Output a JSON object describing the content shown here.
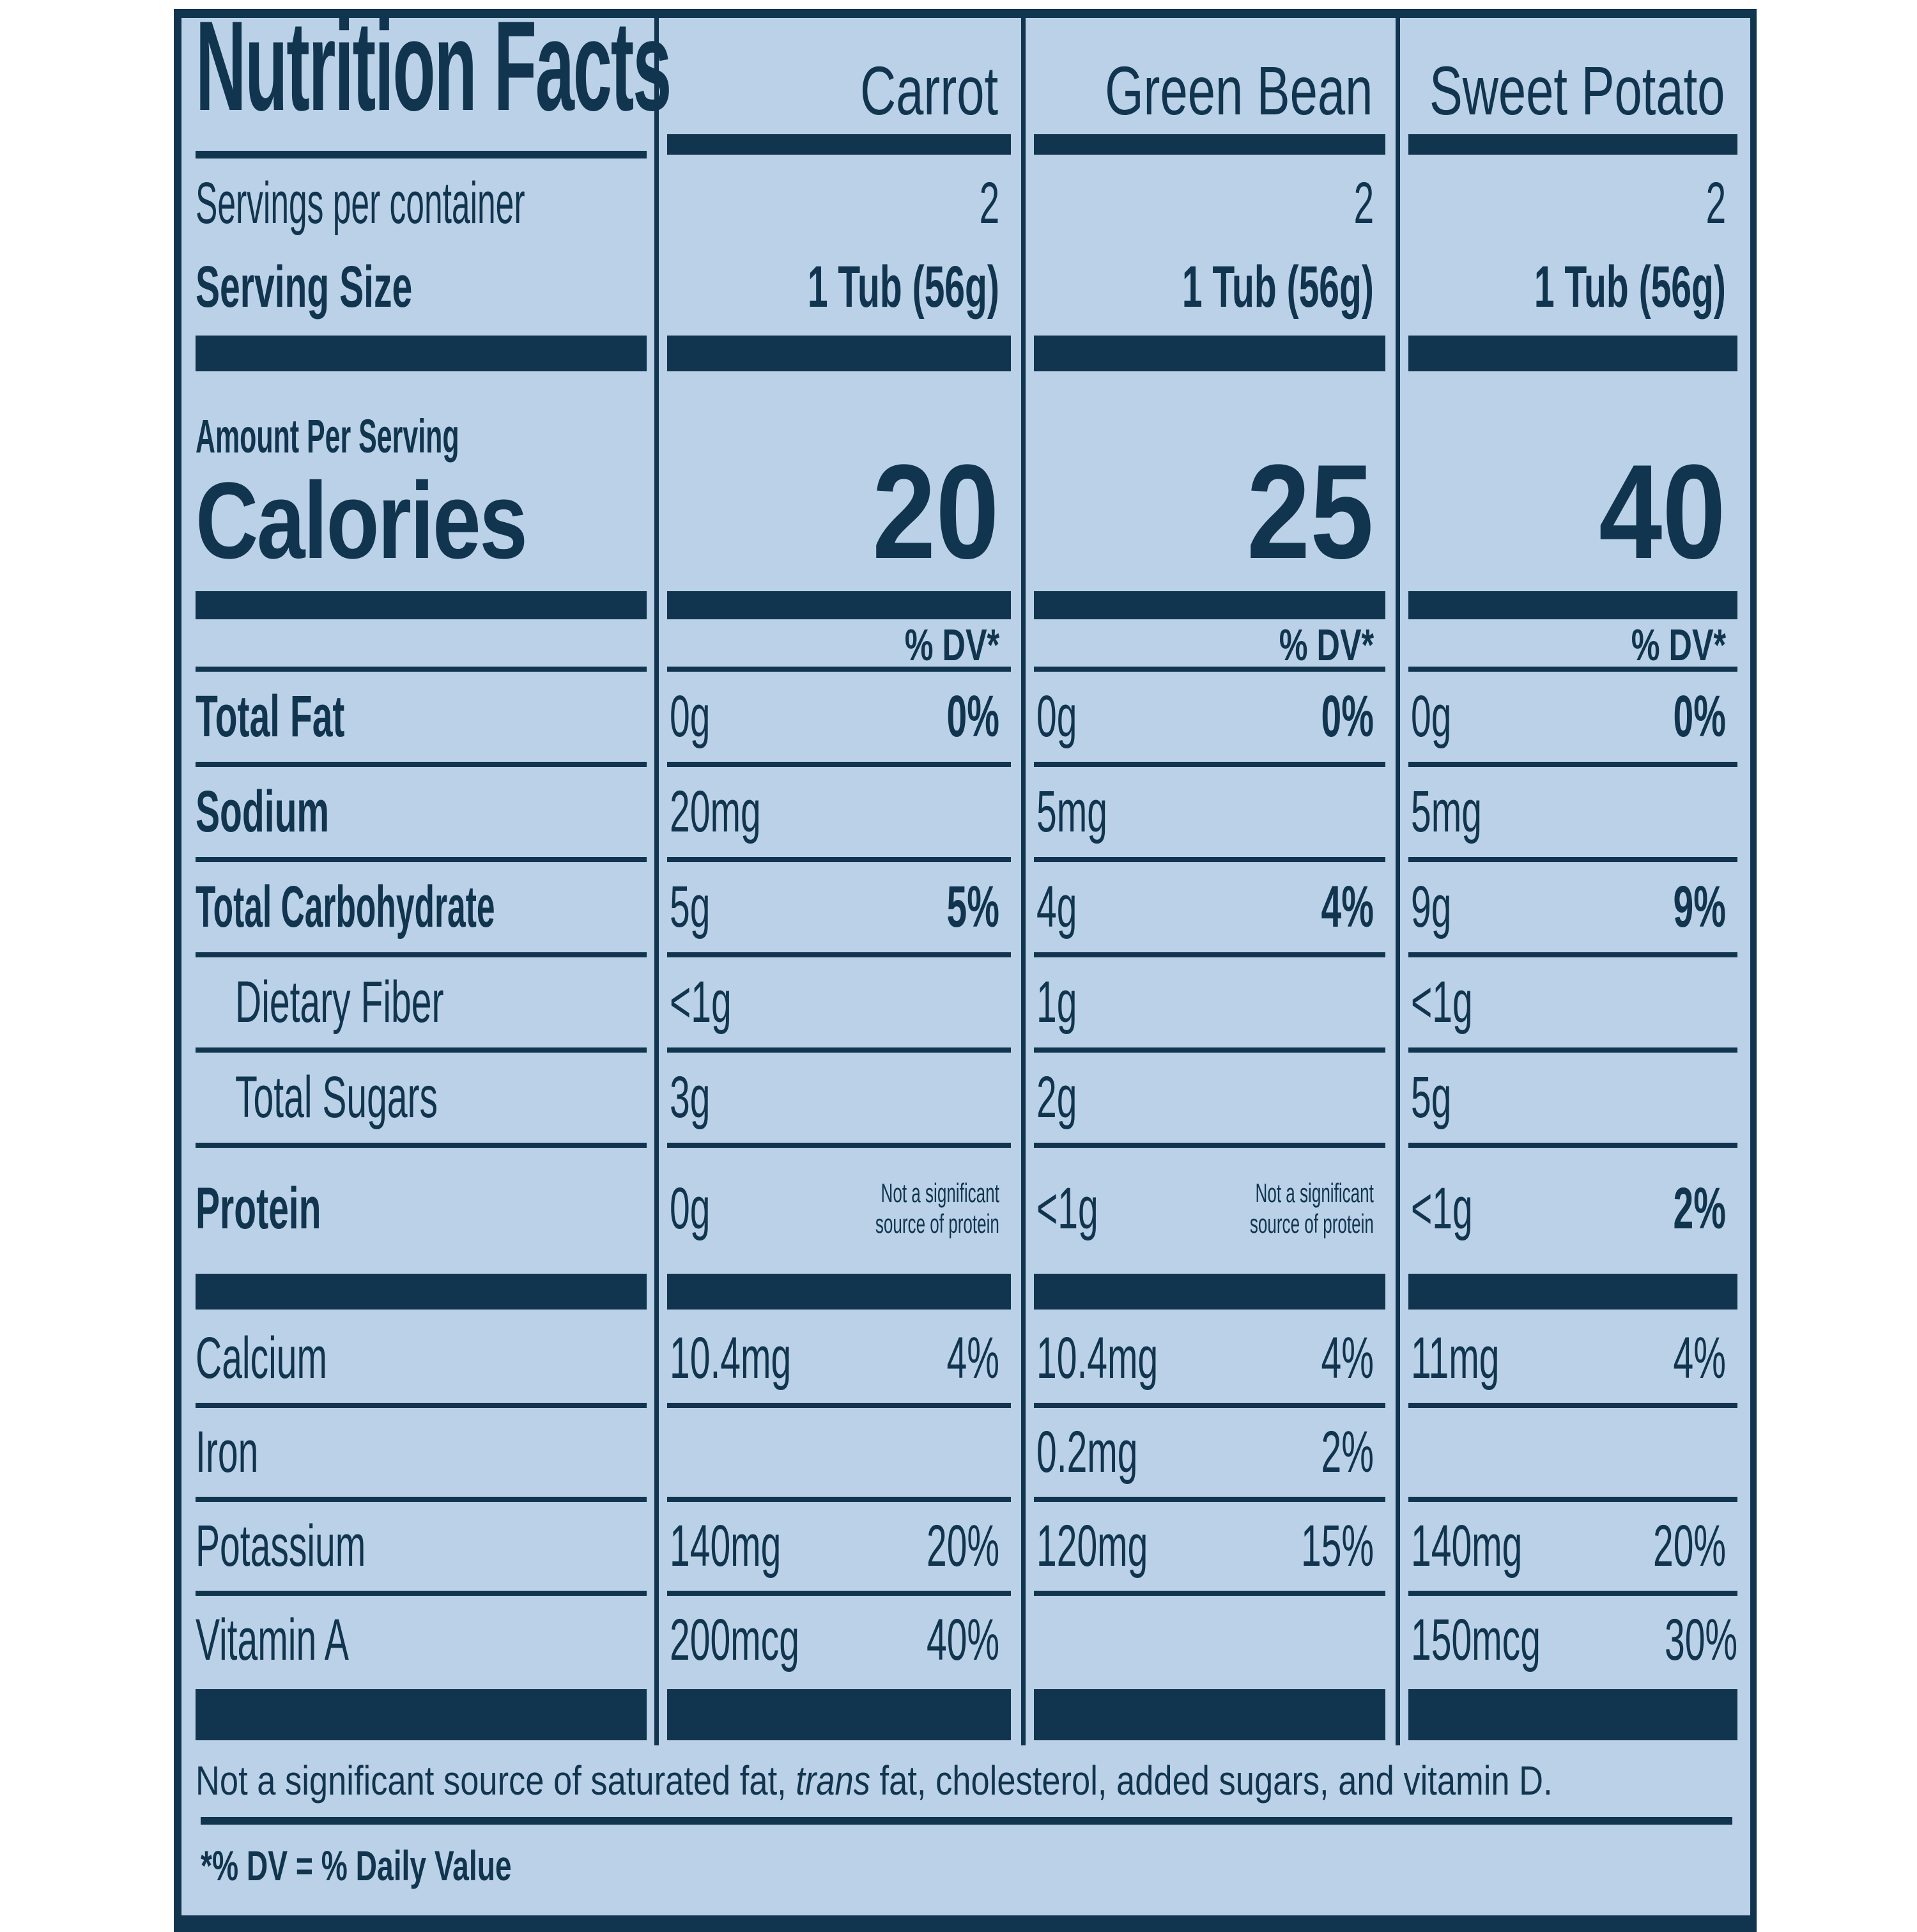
{
  "colors": {
    "ink": "#11354F",
    "panel_bg": "#BAD1E7",
    "page_bg": "#FFFFFF"
  },
  "title": "Nutrition Facts",
  "columns": [
    "Carrot",
    "Green Bean",
    "Sweet Potato"
  ],
  "servings": {
    "label": "Servings per container",
    "values": [
      "2",
      "2",
      "2"
    ]
  },
  "serving_size": {
    "label": "Serving Size",
    "values": [
      "1 Tub (56g)",
      "1 Tub (56g)",
      "1 Tub (56g)"
    ]
  },
  "calories": {
    "heading": "Amount Per Serving",
    "label": "Calories",
    "values": [
      "20",
      "25",
      "40"
    ]
  },
  "dv_header": "% DV*",
  "nutrients": [
    {
      "name": "Total Fat",
      "amts": [
        "0g",
        "0g",
        "0g"
      ],
      "dvs": [
        "0%",
        "0%",
        "0%"
      ]
    },
    {
      "name": "Sodium",
      "amts": [
        "20mg",
        "5mg",
        "5mg"
      ],
      "dvs": [
        "",
        "",
        ""
      ]
    },
    {
      "name": "Total Carbohydrate",
      "amts": [
        "5g",
        "4g",
        "9g"
      ],
      "dvs": [
        "5%",
        "4%",
        "9%"
      ]
    },
    {
      "name": "Dietary Fiber",
      "amts": [
        "<1g",
        "1g",
        "<1g"
      ],
      "dvs": [
        "",
        "",
        ""
      ]
    },
    {
      "name": "Total Sugars",
      "amts": [
        "3g",
        "2g",
        "5g"
      ],
      "dvs": [
        "",
        "",
        ""
      ]
    },
    {
      "name": "Protein",
      "amts": [
        "0g",
        "<1g",
        "<1g"
      ],
      "dvs": [
        "",
        "",
        "2%"
      ]
    }
  ],
  "protein_note": {
    "line1": "Not a significant",
    "line2": "source of protein"
  },
  "minerals": [
    {
      "name": "Calcium",
      "amts": [
        "10.4mg",
        "10.4mg",
        "11mg"
      ],
      "dvs": [
        "4%",
        "4%",
        "4%"
      ]
    },
    {
      "name": "Iron",
      "amts": [
        "",
        "0.2mg",
        ""
      ],
      "dvs": [
        "",
        "2%",
        ""
      ]
    },
    {
      "name": "Potassium",
      "amts": [
        "140mg",
        "120mg",
        "140mg"
      ],
      "dvs": [
        "20%",
        "15%",
        "20%"
      ]
    },
    {
      "name": "Vitamin A",
      "amts": [
        "200mcg",
        "",
        "150mcg"
      ],
      "dvs": [
        "40%",
        "",
        "30%"
      ]
    }
  ],
  "footnote": {
    "prefix": "Not a significant source of saturated fat, ",
    "italic": "trans",
    "suffix": " fat, cholesterol, added sugars, and vitamin D."
  },
  "dv_definition": "*% DV = % Daily Value"
}
